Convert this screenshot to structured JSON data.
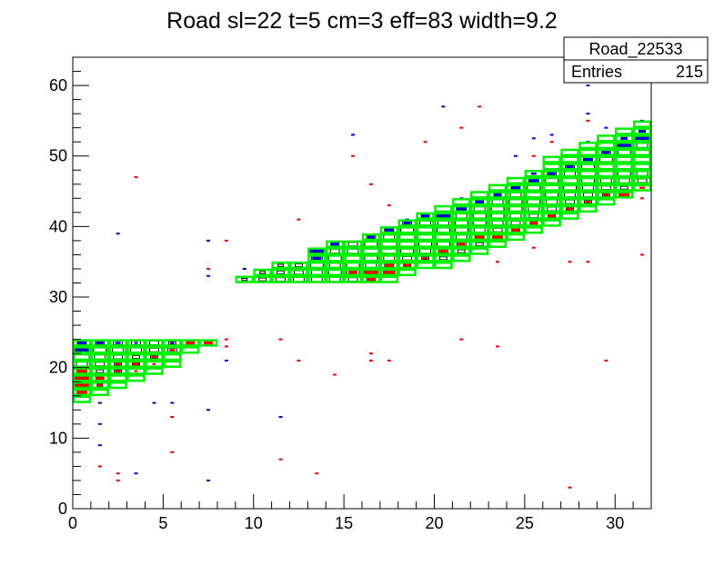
{
  "chart_data": {
    "type": "heatmap",
    "title": "Road sl=22 t=5 cm=3 eff=83 width=9.2",
    "xlabel": "",
    "ylabel": "",
    "xlim": [
      0,
      32
    ],
    "ylim": [
      0,
      64
    ],
    "xticks": [
      0,
      5,
      10,
      15,
      20,
      25,
      30
    ],
    "yticks": [
      0,
      10,
      20,
      30,
      40,
      50,
      60
    ],
    "grid": false,
    "stats_box": {
      "name": "Road_22533",
      "entries_label": "Entries",
      "entries_value": "215"
    },
    "colors": {
      "road_outline": "#00ee00",
      "hits_blue": "#0000cc",
      "hits_red": "#e60000",
      "box_outline": "#000000"
    },
    "road": [
      {
        "x": 0,
        "y": [
          15,
          24
        ]
      },
      {
        "x": 1,
        "y": [
          16,
          24
        ]
      },
      {
        "x": 2,
        "y": [
          17,
          24
        ]
      },
      {
        "x": 3,
        "y": [
          18,
          24
        ]
      },
      {
        "x": 4,
        "y": [
          19,
          24
        ]
      },
      {
        "x": 5,
        "y": [
          20,
          24
        ]
      },
      {
        "x": 6,
        "y": [
          22,
          24
        ]
      },
      {
        "x": 7,
        "y": [
          23,
          24
        ]
      },
      {
        "x": 9,
        "y": [
          32,
          33
        ]
      },
      {
        "x": 10,
        "y": [
          32,
          34
        ]
      },
      {
        "x": 11,
        "y": [
          32,
          35
        ]
      },
      {
        "x": 12,
        "y": [
          32,
          35
        ]
      },
      {
        "x": 13,
        "y": [
          32,
          37
        ]
      },
      {
        "x": 14,
        "y": [
          32,
          38
        ]
      },
      {
        "x": 15,
        "y": [
          32,
          38
        ]
      },
      {
        "x": 16,
        "y": [
          32,
          39
        ]
      },
      {
        "x": 17,
        "y": [
          32,
          40
        ]
      },
      {
        "x": 18,
        "y": [
          33,
          41
        ]
      },
      {
        "x": 19,
        "y": [
          34,
          42
        ]
      },
      {
        "x": 20,
        "y": [
          34,
          43
        ]
      },
      {
        "x": 21,
        "y": [
          35,
          44
        ]
      },
      {
        "x": 22,
        "y": [
          36,
          45
        ]
      },
      {
        "x": 23,
        "y": [
          37,
          46
        ]
      },
      {
        "x": 24,
        "y": [
          38,
          47
        ]
      },
      {
        "x": 25,
        "y": [
          39,
          48
        ]
      },
      {
        "x": 26,
        "y": [
          40,
          50
        ]
      },
      {
        "x": 27,
        "y": [
          41,
          51
        ]
      },
      {
        "x": 28,
        "y": [
          42,
          52
        ]
      },
      {
        "x": 29,
        "y": [
          43,
          53
        ]
      },
      {
        "x": 30,
        "y": [
          44,
          54
        ]
      },
      {
        "x": 31,
        "y": [
          45,
          55
        ]
      }
    ],
    "boxes": [
      [
        0,
        23,
        0.5
      ],
      [
        0,
        22,
        0.7
      ],
      [
        0,
        21,
        0.8
      ],
      [
        0,
        20,
        0.6
      ],
      [
        0,
        19,
        0.5
      ],
      [
        0,
        18,
        0.4
      ],
      [
        0,
        17,
        0.4
      ],
      [
        0,
        16,
        0.3
      ],
      [
        1,
        23,
        0.5
      ],
      [
        1,
        22,
        0.7
      ],
      [
        1,
        21,
        0.6
      ],
      [
        1,
        20,
        0.5
      ],
      [
        1,
        19,
        0.4
      ],
      [
        1,
        18,
        0.4
      ],
      [
        1,
        17,
        0.3
      ],
      [
        2,
        23,
        0.5
      ],
      [
        2,
        22,
        0.6
      ],
      [
        2,
        21,
        0.5
      ],
      [
        2,
        20,
        0.4
      ],
      [
        2,
        19,
        0.4
      ],
      [
        3,
        23,
        0.5
      ],
      [
        3,
        22,
        0.6
      ],
      [
        3,
        21,
        0.4
      ],
      [
        3,
        20,
        0.4
      ],
      [
        4,
        23,
        0.5
      ],
      [
        4,
        22,
        0.5
      ],
      [
        4,
        21,
        0.4
      ],
      [
        5,
        23,
        0.4
      ],
      [
        5,
        22,
        0.5
      ],
      [
        6,
        23,
        0.4
      ],
      [
        7,
        23,
        0.4
      ],
      [
        9,
        32,
        0.3
      ],
      [
        10,
        33,
        0.3
      ],
      [
        10,
        32,
        0.4
      ],
      [
        11,
        34,
        0.3
      ],
      [
        11,
        33,
        0.4
      ],
      [
        11,
        32,
        0.5
      ],
      [
        12,
        34,
        0.4
      ],
      [
        12,
        33,
        0.5
      ],
      [
        12,
        32,
        0.6
      ],
      [
        13,
        36,
        0.4
      ],
      [
        13,
        35,
        0.6
      ],
      [
        13,
        34,
        0.7
      ],
      [
        13,
        33,
        0.6
      ],
      [
        13,
        32,
        0.6
      ],
      [
        14,
        37,
        0.4
      ],
      [
        14,
        36,
        0.5
      ],
      [
        14,
        35,
        0.7
      ],
      [
        14,
        34,
        0.6
      ],
      [
        14,
        33,
        0.7
      ],
      [
        14,
        32,
        0.6
      ],
      [
        15,
        37,
        0.5
      ],
      [
        15,
        36,
        0.6
      ],
      [
        15,
        35,
        0.8
      ],
      [
        15,
        34,
        0.7
      ],
      [
        15,
        33,
        0.7
      ],
      [
        15,
        32,
        0.5
      ],
      [
        16,
        38,
        0.5
      ],
      [
        16,
        37,
        0.7
      ],
      [
        16,
        36,
        0.8
      ],
      [
        16,
        35,
        0.7
      ],
      [
        16,
        34,
        0.6
      ],
      [
        16,
        33,
        0.5
      ],
      [
        16,
        32,
        0.5
      ],
      [
        17,
        39,
        0.5
      ],
      [
        17,
        38,
        0.6
      ],
      [
        17,
        37,
        0.8
      ],
      [
        17,
        36,
        0.8
      ],
      [
        17,
        35,
        0.6
      ],
      [
        17,
        34,
        0.5
      ],
      [
        17,
        33,
        0.4
      ],
      [
        18,
        40,
        0.5
      ],
      [
        18,
        39,
        0.7
      ],
      [
        18,
        38,
        0.8
      ],
      [
        18,
        37,
        0.8
      ],
      [
        18,
        36,
        0.7
      ],
      [
        18,
        35,
        0.5
      ],
      [
        18,
        34,
        0.4
      ],
      [
        19,
        41,
        0.4
      ],
      [
        19,
        40,
        0.6
      ],
      [
        19,
        39,
        0.8
      ],
      [
        19,
        38,
        0.8
      ],
      [
        19,
        37,
        0.7
      ],
      [
        19,
        36,
        0.6
      ],
      [
        19,
        35,
        0.4
      ],
      [
        20,
        41,
        0.5
      ],
      [
        20,
        40,
        0.6
      ],
      [
        20,
        39,
        0.7
      ],
      [
        20,
        38,
        0.8
      ],
      [
        20,
        37,
        0.7
      ],
      [
        20,
        36,
        0.5
      ],
      [
        20,
        35,
        0.4
      ],
      [
        21,
        42,
        0.5
      ],
      [
        21,
        41,
        0.6
      ],
      [
        21,
        40,
        0.7
      ],
      [
        21,
        39,
        0.7
      ],
      [
        21,
        38,
        0.6
      ],
      [
        21,
        37,
        0.5
      ],
      [
        21,
        36,
        0.4
      ],
      [
        22,
        43,
        0.4
      ],
      [
        22,
        42,
        0.6
      ],
      [
        22,
        41,
        0.7
      ],
      [
        22,
        40,
        0.7
      ],
      [
        22,
        39,
        0.6
      ],
      [
        22,
        38,
        0.5
      ],
      [
        22,
        37,
        0.4
      ],
      [
        23,
        44,
        0.4
      ],
      [
        23,
        43,
        0.6
      ],
      [
        23,
        42,
        0.7
      ],
      [
        23,
        41,
        0.7
      ],
      [
        23,
        40,
        0.6
      ],
      [
        23,
        39,
        0.5
      ],
      [
        23,
        38,
        0.4
      ],
      [
        24,
        45,
        0.5
      ],
      [
        24,
        44,
        0.6
      ],
      [
        24,
        43,
        0.7
      ],
      [
        24,
        42,
        0.7
      ],
      [
        24,
        41,
        0.6
      ],
      [
        24,
        40,
        0.5
      ],
      [
        24,
        39,
        0.4
      ],
      [
        25,
        46,
        0.5
      ],
      [
        25,
        45,
        0.7
      ],
      [
        25,
        44,
        0.8
      ],
      [
        25,
        43,
        0.7
      ],
      [
        25,
        42,
        0.6
      ],
      [
        25,
        41,
        0.5
      ],
      [
        25,
        40,
        0.4
      ],
      [
        26,
        47,
        0.5
      ],
      [
        26,
        46,
        0.7
      ],
      [
        26,
        45,
        0.8
      ],
      [
        26,
        44,
        0.7
      ],
      [
        26,
        43,
        0.6
      ],
      [
        26,
        42,
        0.5
      ],
      [
        26,
        41,
        0.4
      ],
      [
        27,
        48,
        0.5
      ],
      [
        27,
        47,
        0.6
      ],
      [
        27,
        46,
        0.8
      ],
      [
        27,
        45,
        0.7
      ],
      [
        27,
        44,
        0.6
      ],
      [
        27,
        43,
        0.5
      ],
      [
        27,
        42,
        0.4
      ],
      [
        28,
        49,
        0.5
      ],
      [
        28,
        48,
        0.7
      ],
      [
        28,
        47,
        0.8
      ],
      [
        28,
        46,
        0.7
      ],
      [
        28,
        45,
        0.6
      ],
      [
        28,
        44,
        0.5
      ],
      [
        28,
        43,
        0.4
      ],
      [
        29,
        50,
        0.5
      ],
      [
        29,
        49,
        0.7
      ],
      [
        29,
        48,
        0.8
      ],
      [
        29,
        47,
        0.8
      ],
      [
        29,
        46,
        0.6
      ],
      [
        29,
        45,
        0.5
      ],
      [
        29,
        44,
        0.4
      ],
      [
        30,
        51,
        0.5
      ],
      [
        30,
        50,
        0.7
      ],
      [
        30,
        49,
        0.8
      ],
      [
        30,
        48,
        0.8
      ],
      [
        30,
        47,
        0.7
      ],
      [
        30,
        46,
        0.6
      ],
      [
        30,
        45,
        0.4
      ],
      [
        31,
        52,
        0.5
      ],
      [
        31,
        51,
        0.6
      ],
      [
        31,
        50,
        0.8
      ],
      [
        31,
        49,
        0.9
      ],
      [
        31,
        48,
        0.8
      ],
      [
        31,
        47,
        0.6
      ],
      [
        31,
        46,
        0.5
      ]
    ],
    "blue_hits": [
      [
        0,
        23,
        0.5
      ],
      [
        0,
        22,
        0.8
      ],
      [
        1,
        23,
        0.4
      ],
      [
        2,
        23,
        0.3
      ],
      [
        3,
        23,
        0.2
      ],
      [
        5,
        23,
        0.2
      ],
      [
        13,
        36,
        0.8
      ],
      [
        13,
        35,
        0.5
      ],
      [
        14,
        37,
        0.5
      ],
      [
        16,
        38,
        0.4
      ],
      [
        17,
        39,
        0.5
      ],
      [
        18,
        40,
        0.4
      ],
      [
        19,
        41,
        0.5
      ],
      [
        20,
        41,
        0.8
      ],
      [
        21,
        42,
        0.6
      ],
      [
        22,
        43,
        0.5
      ],
      [
        23,
        44,
        0.4
      ],
      [
        24,
        45,
        0.5
      ],
      [
        25,
        46,
        0.6
      ],
      [
        25,
        47,
        0.3
      ],
      [
        26,
        47,
        0.4
      ],
      [
        27,
        48,
        0.4
      ],
      [
        28,
        49,
        0.5
      ],
      [
        29,
        50,
        0.4
      ],
      [
        30,
        51,
        0.8
      ],
      [
        30,
        52,
        0.4
      ],
      [
        31,
        52,
        0.8
      ],
      [
        31,
        53,
        0.4
      ],
      [
        20,
        56.5,
        0.2
      ],
      [
        15,
        52.5,
        0.2
      ],
      [
        25,
        52,
        0.2
      ],
      [
        28,
        55.5,
        0.2
      ],
      [
        28,
        59.5,
        0.2
      ],
      [
        29,
        53.5,
        0.2
      ],
      [
        24,
        49.5,
        0.2
      ],
      [
        26,
        52.5,
        0.2
      ],
      [
        31,
        54.5,
        0.2
      ],
      [
        2,
        38.5,
        0.2
      ],
      [
        7,
        37.5,
        0.2
      ],
      [
        7,
        32.5,
        0.2
      ],
      [
        8,
        20.5,
        0.2
      ],
      [
        1,
        14.5,
        0.2
      ],
      [
        1,
        11.5,
        0.2
      ],
      [
        1,
        8.5,
        0.2
      ],
      [
        3,
        4.5,
        0.2
      ],
      [
        4,
        14.5,
        0.2
      ],
      [
        5,
        14.5,
        0.2
      ],
      [
        7,
        13.5,
        0.2
      ],
      [
        7,
        3.5,
        0.2
      ],
      [
        11,
        12.5,
        0.2
      ],
      [
        9,
        33.5,
        0.2
      ],
      [
        18,
        40.5,
        0.2
      ],
      [
        21,
        43.5,
        0.2
      ],
      [
        28,
        51.5,
        0.2
      ]
    ],
    "red_hits": [
      [
        0,
        19,
        0.6
      ],
      [
        0,
        18,
        0.9
      ],
      [
        0,
        17,
        0.8
      ],
      [
        0,
        16,
        0.6
      ],
      [
        1,
        18,
        0.5
      ],
      [
        1,
        17,
        0.3
      ],
      [
        2,
        20,
        0.3
      ],
      [
        2,
        19,
        0.3
      ],
      [
        3,
        20,
        0.4
      ],
      [
        3,
        19,
        0.2
      ],
      [
        4,
        21,
        0.3
      ],
      [
        4,
        20,
        0.2
      ],
      [
        5,
        22,
        0.3
      ],
      [
        6,
        23,
        0.5
      ],
      [
        7,
        23,
        0.5
      ],
      [
        8,
        23.5,
        0.2
      ],
      [
        8,
        22.5,
        0.2
      ],
      [
        15,
        33,
        0.5
      ],
      [
        16,
        33,
        0.8
      ],
      [
        16,
        32,
        0.4
      ],
      [
        17,
        33,
        0.7
      ],
      [
        17,
        34,
        0.5
      ],
      [
        18,
        34,
        0.4
      ],
      [
        19,
        35,
        0.3
      ],
      [
        20,
        36,
        0.4
      ],
      [
        21,
        37,
        0.4
      ],
      [
        22,
        38,
        0.5
      ],
      [
        23,
        38,
        0.6
      ],
      [
        24,
        39,
        0.5
      ],
      [
        25,
        40,
        0.4
      ],
      [
        26,
        41,
        0.4
      ],
      [
        27,
        42,
        0.4
      ],
      [
        28,
        43,
        0.3
      ],
      [
        29,
        44,
        0.3
      ],
      [
        30,
        44,
        0.6
      ],
      [
        31,
        45,
        0.3
      ],
      [
        3,
        46.5,
        0.2
      ],
      [
        15,
        49.5,
        0.2
      ],
      [
        16,
        45.5,
        0.2
      ],
      [
        17,
        42.5,
        0.2
      ],
      [
        19,
        51.5,
        0.2
      ],
      [
        21,
        53.5,
        0.2
      ],
      [
        22,
        56.5,
        0.2
      ],
      [
        25,
        49.5,
        0.2
      ],
      [
        26,
        51.5,
        0.2
      ],
      [
        28,
        54.5,
        0.2
      ],
      [
        12,
        40.5,
        0.2
      ],
      [
        7,
        37.5,
        0.2
      ],
      [
        8,
        37.5,
        0.2
      ],
      [
        7,
        33.5,
        0.2
      ],
      [
        11,
        23.5,
        0.2
      ],
      [
        12,
        20.5,
        0.2
      ],
      [
        16,
        21.5,
        0.2
      ],
      [
        16,
        20.5,
        0.2
      ],
      [
        17,
        20.5,
        0.2
      ],
      [
        13,
        4.5,
        0.2
      ],
      [
        14,
        18.5,
        0.2
      ],
      [
        11,
        6.5,
        0.2
      ],
      [
        1,
        5.5,
        0.2
      ],
      [
        2,
        4.5,
        0.2
      ],
      [
        2,
        3.5,
        0.2
      ],
      [
        5,
        12.5,
        0.2
      ],
      [
        5,
        7.5,
        0.2
      ],
      [
        21,
        23.5,
        0.2
      ],
      [
        23,
        22.5,
        0.2
      ],
      [
        23,
        34.5,
        0.2
      ],
      [
        25,
        36.5,
        0.2
      ],
      [
        27,
        34.5,
        0.2
      ],
      [
        28,
        34.5,
        0.2
      ],
      [
        29,
        20.5,
        0.2
      ],
      [
        31,
        35.5,
        0.2
      ],
      [
        27,
        2.5,
        0.2
      ],
      [
        31,
        43.5,
        0.2
      ],
      [
        29,
        46.5,
        0.2
      ]
    ]
  }
}
